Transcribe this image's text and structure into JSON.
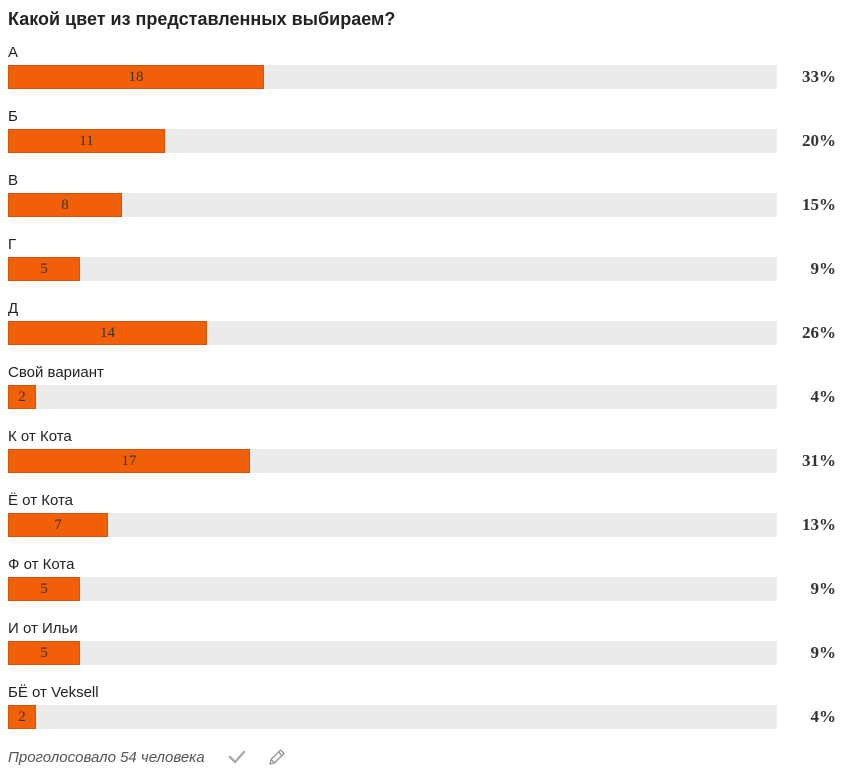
{
  "poll": {
    "title": "Какой цвет из представленных выбираем?",
    "options": [
      {
        "label": "А",
        "count": "18",
        "percent": "33%",
        "fraction": 0.333
      },
      {
        "label": "Б",
        "count": "11",
        "percent": "20%",
        "fraction": 0.204
      },
      {
        "label": "В",
        "count": "8",
        "percent": "15%",
        "fraction": 0.148
      },
      {
        "label": "Г",
        "count": "5",
        "percent": "9%",
        "fraction": 0.093
      },
      {
        "label": "Д",
        "count": "14",
        "percent": "26%",
        "fraction": 0.259
      },
      {
        "label": "Свой вариант",
        "count": "2",
        "percent": "4%",
        "fraction": 0.037
      },
      {
        "label": "К от Кота",
        "count": "17",
        "percent": "31%",
        "fraction": 0.315
      },
      {
        "label": "Ё от Кота",
        "count": "7",
        "percent": "13%",
        "fraction": 0.13
      },
      {
        "label": "Ф от Кота",
        "count": "5",
        "percent": "9%",
        "fraction": 0.093
      },
      {
        "label": "И от Ильи",
        "count": "5",
        "percent": "9%",
        "fraction": 0.093
      },
      {
        "label": "БЁ от Veksell",
        "count": "2",
        "percent": "4%",
        "fraction": 0.037
      }
    ],
    "votes_text": "Проголосовало 54 человека",
    "icons": {
      "vote": "check-icon",
      "edit": "pencil-icon"
    },
    "colors": {
      "bar_fill": "#f16008",
      "bar_track": "#ebebeb"
    }
  }
}
